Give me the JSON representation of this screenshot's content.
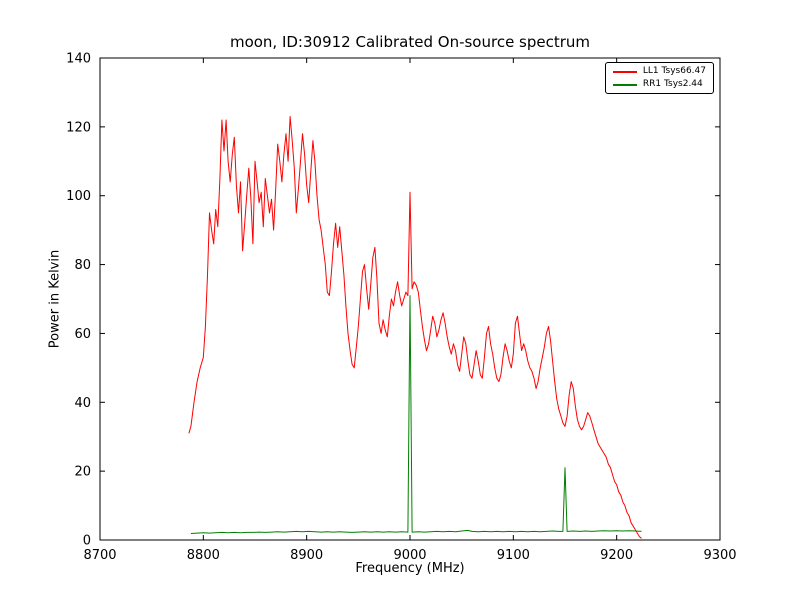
{
  "figure": {
    "title": "moon, ID:30912 Calibrated On-source spectrum",
    "xlabel": "Frequency (MHz)",
    "ylabel": "Power in Kelvin"
  },
  "chart_data": {
    "type": "line",
    "title": "moon, ID:30912 Calibrated On-source spectrum",
    "xlabel": "Frequency (MHz)",
    "ylabel": "Power in Kelvin",
    "xlim": [
      8700,
      9300
    ],
    "ylim": [
      0,
      140
    ],
    "x_ticks": [
      8700,
      8800,
      8900,
      9000,
      9100,
      9200,
      9300
    ],
    "y_ticks": [
      0,
      20,
      40,
      60,
      80,
      100,
      120,
      140
    ],
    "grid": false,
    "legend_position": "upper right",
    "series": [
      {
        "name": "LL1 Tsys66.47",
        "color": "#ff0000",
        "points": [
          [
            8786,
            31
          ],
          [
            8788,
            33
          ],
          [
            8791,
            40
          ],
          [
            8794,
            46
          ],
          [
            8797,
            50
          ],
          [
            8800,
            53
          ],
          [
            8802,
            62
          ],
          [
            8804,
            77
          ],
          [
            8806,
            95
          ],
          [
            8808,
            90
          ],
          [
            8810,
            86
          ],
          [
            8812,
            96
          ],
          [
            8814,
            91
          ],
          [
            8816,
            105
          ],
          [
            8818,
            122
          ],
          [
            8820,
            113
          ],
          [
            8822,
            122
          ],
          [
            8824,
            110
          ],
          [
            8826,
            104
          ],
          [
            8828,
            112
          ],
          [
            8830,
            117
          ],
          [
            8832,
            103
          ],
          [
            8834,
            95
          ],
          [
            8836,
            104
          ],
          [
            8838,
            84
          ],
          [
            8840,
            92
          ],
          [
            8842,
            100
          ],
          [
            8844,
            108
          ],
          [
            8846,
            99
          ],
          [
            8848,
            86
          ],
          [
            8850,
            110
          ],
          [
            8852,
            104
          ],
          [
            8854,
            98
          ],
          [
            8856,
            101
          ],
          [
            8858,
            91
          ],
          [
            8860,
            105
          ],
          [
            8862,
            100
          ],
          [
            8864,
            95
          ],
          [
            8866,
            99
          ],
          [
            8868,
            90
          ],
          [
            8870,
            102
          ],
          [
            8872,
            115
          ],
          [
            8874,
            110
          ],
          [
            8876,
            104
          ],
          [
            8878,
            112
          ],
          [
            8880,
            118
          ],
          [
            8882,
            110
          ],
          [
            8884,
            123
          ],
          [
            8886,
            116
          ],
          [
            8888,
            108
          ],
          [
            8890,
            95
          ],
          [
            8892,
            102
          ],
          [
            8894,
            110
          ],
          [
            8896,
            118
          ],
          [
            8898,
            112
          ],
          [
            8900,
            103
          ],
          [
            8902,
            98
          ],
          [
            8904,
            107
          ],
          [
            8906,
            116
          ],
          [
            8908,
            110
          ],
          [
            8910,
            100
          ],
          [
            8912,
            93
          ],
          [
            8914,
            90
          ],
          [
            8916,
            85
          ],
          [
            8918,
            80
          ],
          [
            8920,
            72
          ],
          [
            8922,
            71
          ],
          [
            8924,
            78
          ],
          [
            8926,
            86
          ],
          [
            8928,
            92
          ],
          [
            8930,
            85
          ],
          [
            8932,
            91
          ],
          [
            8934,
            84
          ],
          [
            8936,
            77
          ],
          [
            8938,
            68
          ],
          [
            8940,
            60
          ],
          [
            8942,
            55
          ],
          [
            8944,
            51
          ],
          [
            8946,
            50
          ],
          [
            8948,
            56
          ],
          [
            8950,
            62
          ],
          [
            8952,
            70
          ],
          [
            8954,
            78
          ],
          [
            8956,
            80
          ],
          [
            8958,
            73
          ],
          [
            8960,
            67
          ],
          [
            8962,
            74
          ],
          [
            8964,
            82
          ],
          [
            8966,
            85
          ],
          [
            8968,
            76
          ],
          [
            8970,
            63
          ],
          [
            8972,
            60
          ],
          [
            8974,
            64
          ],
          [
            8976,
            61
          ],
          [
            8978,
            59
          ],
          [
            8980,
            65
          ],
          [
            8982,
            70
          ],
          [
            8984,
            68
          ],
          [
            8986,
            72
          ],
          [
            8988,
            75
          ],
          [
            8990,
            71
          ],
          [
            8992,
            68
          ],
          [
            8994,
            70
          ],
          [
            8996,
            72
          ],
          [
            8998,
            71
          ],
          [
            9000,
            101
          ],
          [
            9002,
            73
          ],
          [
            9004,
            75
          ],
          [
            9006,
            74
          ],
          [
            9008,
            72
          ],
          [
            9010,
            67
          ],
          [
            9012,
            62
          ],
          [
            9014,
            58
          ],
          [
            9016,
            55
          ],
          [
            9018,
            57
          ],
          [
            9020,
            61
          ],
          [
            9022,
            65
          ],
          [
            9024,
            63
          ],
          [
            9026,
            59
          ],
          [
            9028,
            61
          ],
          [
            9030,
            64
          ],
          [
            9032,
            66
          ],
          [
            9034,
            63
          ],
          [
            9036,
            59
          ],
          [
            9038,
            56
          ],
          [
            9040,
            54
          ],
          [
            9042,
            57
          ],
          [
            9044,
            55
          ],
          [
            9046,
            51
          ],
          [
            9048,
            49
          ],
          [
            9050,
            54
          ],
          [
            9052,
            59
          ],
          [
            9054,
            57
          ],
          [
            9056,
            52
          ],
          [
            9058,
            48
          ],
          [
            9060,
            47
          ],
          [
            9062,
            51
          ],
          [
            9064,
            55
          ],
          [
            9066,
            52
          ],
          [
            9068,
            48
          ],
          [
            9070,
            47
          ],
          [
            9072,
            53
          ],
          [
            9074,
            60
          ],
          [
            9076,
            62
          ],
          [
            9078,
            57
          ],
          [
            9080,
            54
          ],
          [
            9082,
            50
          ],
          [
            9084,
            47
          ],
          [
            9086,
            46
          ],
          [
            9088,
            48
          ],
          [
            9090,
            53
          ],
          [
            9092,
            57
          ],
          [
            9094,
            55
          ],
          [
            9096,
            52
          ],
          [
            9098,
            50
          ],
          [
            9100,
            54
          ],
          [
            9102,
            63
          ],
          [
            9104,
            65
          ],
          [
            9106,
            60
          ],
          [
            9108,
            55
          ],
          [
            9110,
            57
          ],
          [
            9112,
            55
          ],
          [
            9114,
            52
          ],
          [
            9116,
            50
          ],
          [
            9118,
            49
          ],
          [
            9120,
            47
          ],
          [
            9122,
            44
          ],
          [
            9124,
            46
          ],
          [
            9126,
            50
          ],
          [
            9128,
            53
          ],
          [
            9130,
            56
          ],
          [
            9132,
            60
          ],
          [
            9134,
            62
          ],
          [
            9136,
            58
          ],
          [
            9138,
            52
          ],
          [
            9140,
            46
          ],
          [
            9142,
            41
          ],
          [
            9144,
            38
          ],
          [
            9146,
            36
          ],
          [
            9148,
            34
          ],
          [
            9150,
            33
          ],
          [
            9152,
            36
          ],
          [
            9154,
            42
          ],
          [
            9156,
            46
          ],
          [
            9158,
            44
          ],
          [
            9160,
            39
          ],
          [
            9162,
            35
          ],
          [
            9164,
            33
          ],
          [
            9166,
            32
          ],
          [
            9168,
            33
          ],
          [
            9170,
            35
          ],
          [
            9172,
            37
          ],
          [
            9174,
            36
          ],
          [
            9176,
            34
          ],
          [
            9178,
            32
          ],
          [
            9180,
            30
          ],
          [
            9182,
            28
          ],
          [
            9184,
            27
          ],
          [
            9186,
            26
          ],
          [
            9188,
            25
          ],
          [
            9190,
            24
          ],
          [
            9192,
            22
          ],
          [
            9194,
            21
          ],
          [
            9196,
            19
          ],
          [
            9198,
            17
          ],
          [
            9200,
            16
          ],
          [
            9202,
            14
          ],
          [
            9204,
            13
          ],
          [
            9206,
            11
          ],
          [
            9208,
            10
          ],
          [
            9210,
            8
          ],
          [
            9212,
            7
          ],
          [
            9214,
            5
          ],
          [
            9216,
            4
          ],
          [
            9218,
            3
          ],
          [
            9220,
            2
          ],
          [
            9222,
            1
          ],
          [
            9224,
            0.5
          ]
        ]
      },
      {
        "name": "RR1 Tsys2.44",
        "color": "#008000",
        "points": [
          [
            8788,
            1.9
          ],
          [
            8794,
            2.0
          ],
          [
            8800,
            2.1
          ],
          [
            8806,
            2.0
          ],
          [
            8812,
            2.1
          ],
          [
            8818,
            2.2
          ],
          [
            8824,
            2.1
          ],
          [
            8830,
            2.2
          ],
          [
            8836,
            2.1
          ],
          [
            8842,
            2.2
          ],
          [
            8848,
            2.2
          ],
          [
            8854,
            2.3
          ],
          [
            8860,
            2.2
          ],
          [
            8866,
            2.3
          ],
          [
            8872,
            2.4
          ],
          [
            8878,
            2.3
          ],
          [
            8884,
            2.4
          ],
          [
            8890,
            2.5
          ],
          [
            8896,
            2.4
          ],
          [
            8902,
            2.5
          ],
          [
            8908,
            2.4
          ],
          [
            8914,
            2.3
          ],
          [
            8920,
            2.4
          ],
          [
            8926,
            2.3
          ],
          [
            8932,
            2.4
          ],
          [
            8938,
            2.3
          ],
          [
            8944,
            2.2
          ],
          [
            8950,
            2.3
          ],
          [
            8956,
            2.4
          ],
          [
            8962,
            2.3
          ],
          [
            8968,
            2.4
          ],
          [
            8974,
            2.3
          ],
          [
            8980,
            2.4
          ],
          [
            8986,
            2.3
          ],
          [
            8992,
            2.4
          ],
          [
            8998,
            2.3
          ],
          [
            9000,
            71
          ],
          [
            9002,
            2.3
          ],
          [
            9008,
            2.4
          ],
          [
            9014,
            2.3
          ],
          [
            9020,
            2.4
          ],
          [
            9026,
            2.5
          ],
          [
            9032,
            2.4
          ],
          [
            9038,
            2.5
          ],
          [
            9044,
            2.4
          ],
          [
            9050,
            2.6
          ],
          [
            9056,
            2.8
          ],
          [
            9060,
            2.5
          ],
          [
            9066,
            2.4
          ],
          [
            9072,
            2.5
          ],
          [
            9078,
            2.4
          ],
          [
            9084,
            2.5
          ],
          [
            9090,
            2.4
          ],
          [
            9096,
            2.5
          ],
          [
            9102,
            2.4
          ],
          [
            9108,
            2.5
          ],
          [
            9114,
            2.4
          ],
          [
            9120,
            2.5
          ],
          [
            9126,
            2.4
          ],
          [
            9132,
            2.5
          ],
          [
            9138,
            2.6
          ],
          [
            9144,
            2.5
          ],
          [
            9148,
            2.5
          ],
          [
            9150,
            21
          ],
          [
            9152,
            2.5
          ],
          [
            9158,
            2.6
          ],
          [
            9164,
            2.5
          ],
          [
            9170,
            2.6
          ],
          [
            9176,
            2.5
          ],
          [
            9182,
            2.6
          ],
          [
            9188,
            2.7
          ],
          [
            9194,
            2.6
          ],
          [
            9200,
            2.7
          ],
          [
            9206,
            2.6
          ],
          [
            9212,
            2.7
          ],
          [
            9218,
            2.6
          ],
          [
            9224,
            2.5
          ]
        ]
      }
    ]
  }
}
